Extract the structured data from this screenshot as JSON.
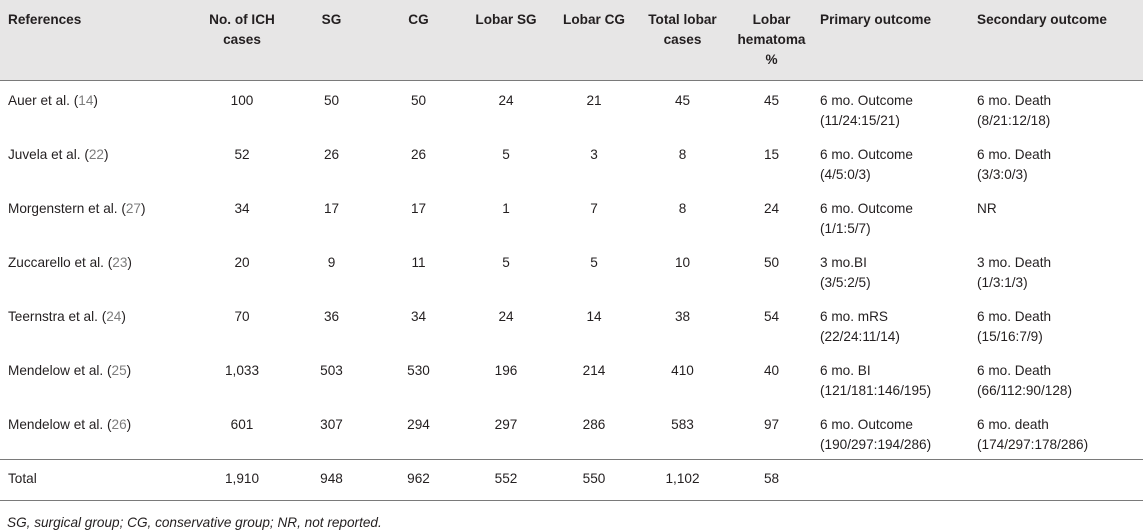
{
  "table": {
    "headers": [
      "References",
      "No. of ICH cases",
      "SG",
      "CG",
      "Lobar SG",
      "Lobar CG",
      "Total lobar cases",
      "Lobar hematoma %",
      "Primary outcome",
      "Secondary outcome"
    ],
    "rows": [
      {
        "ref_name": "Auer et al. (",
        "ref_num": "14",
        "ref_close": ")",
        "ich": "100",
        "sg": "50",
        "cg": "50",
        "lobar_sg": "24",
        "lobar_cg": "21",
        "total_lobar": "45",
        "lobar_pct": "45",
        "primary_1": "6 mo. Outcome",
        "primary_2": "(11/24:15/21)",
        "secondary_1": "6 mo. Death",
        "secondary_2": "(8/21:12/18)"
      },
      {
        "ref_name": "Juvela et al. (",
        "ref_num": "22",
        "ref_close": ")",
        "ich": "52",
        "sg": "26",
        "cg": "26",
        "lobar_sg": "5",
        "lobar_cg": "3",
        "total_lobar": "8",
        "lobar_pct": "15",
        "primary_1": "6 mo. Outcome",
        "primary_2": "(4/5:0/3)",
        "secondary_1": "6 mo. Death",
        "secondary_2": "(3/3:0/3)"
      },
      {
        "ref_name": "Morgenstern et al. (",
        "ref_num": "27",
        "ref_close": ")",
        "ich": "34",
        "sg": "17",
        "cg": "17",
        "lobar_sg": "1",
        "lobar_cg": "7",
        "total_lobar": "8",
        "lobar_pct": "24",
        "primary_1": "6 mo. Outcome",
        "primary_2": "(1/1:5/7)",
        "secondary_1": "NR",
        "secondary_2": ""
      },
      {
        "ref_name": "Zuccarello et al. (",
        "ref_num": "23",
        "ref_close": ")",
        "ich": "20",
        "sg": "9",
        "cg": "11",
        "lobar_sg": "5",
        "lobar_cg": "5",
        "total_lobar": "10",
        "lobar_pct": "50",
        "primary_1": "3 mo.BI",
        "primary_2": "(3/5:2/5)",
        "secondary_1": "3 mo. Death",
        "secondary_2": "(1/3:1/3)"
      },
      {
        "ref_name": "Teernstra et al. (",
        "ref_num": "24",
        "ref_close": ")",
        "ich": "70",
        "sg": "36",
        "cg": "34",
        "lobar_sg": "24",
        "lobar_cg": "14",
        "total_lobar": "38",
        "lobar_pct": "54",
        "primary_1": "6 mo. mRS",
        "primary_2": "(22/24:11/14)",
        "secondary_1": "6 mo. Death",
        "secondary_2": "(15/16:7/9)"
      },
      {
        "ref_name": "Mendelow et al. (",
        "ref_num": "25",
        "ref_close": ")",
        "ich": "1,033",
        "sg": "503",
        "cg": "530",
        "lobar_sg": "196",
        "lobar_cg": "214",
        "total_lobar": "410",
        "lobar_pct": "40",
        "primary_1": "6 mo. BI",
        "primary_2": "(121/181:146/195)",
        "secondary_1": "6 mo. Death",
        "secondary_2": "(66/112:90/128)"
      },
      {
        "ref_name": "Mendelow et al. (",
        "ref_num": "26",
        "ref_close": ")",
        "ich": "601",
        "sg": "307",
        "cg": "294",
        "lobar_sg": "297",
        "lobar_cg": "286",
        "total_lobar": "583",
        "lobar_pct": "97",
        "primary_1": "6 mo. Outcome",
        "primary_2": "(190/297:194/286)",
        "secondary_1": "6 mo. death",
        "secondary_2": "(174/297:178/286)"
      }
    ],
    "total": {
      "label": "Total",
      "ich": "1,910",
      "sg": "948",
      "cg": "962",
      "lobar_sg": "552",
      "lobar_cg": "550",
      "total_lobar": "1,102",
      "lobar_pct": "58"
    }
  },
  "footnote": "SG, surgical group; CG, conservative group; NR, not reported."
}
